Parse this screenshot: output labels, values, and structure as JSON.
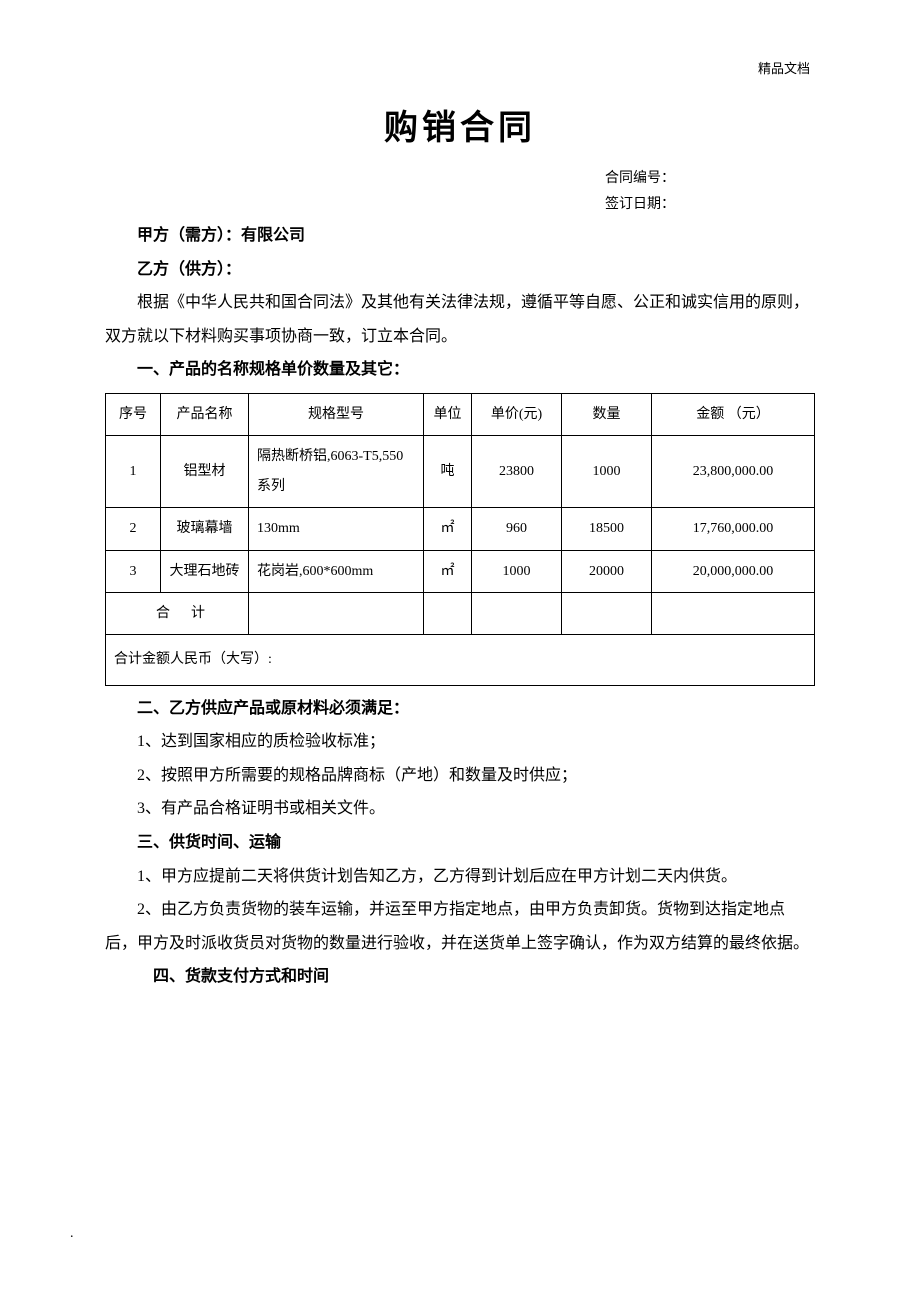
{
  "header_mark": "精品文档",
  "title": "购销合同",
  "meta": {
    "contract_no_label": "合同编号：",
    "sign_date_label": "签订日期："
  },
  "parties": {
    "party_a": "甲方（需方）：有限公司",
    "party_b": "乙方（供方）："
  },
  "intro": "根据《中华人民共和国合同法》及其他有关法律法规，遵循平等自愿、公正和诚实信用的原则，双方就以下材料购买事项协商一致，订立本合同。",
  "section1": {
    "heading": "一、产品的名称规格单价数量及其它：",
    "table": {
      "columns": [
        "序号",
        "产品名称",
        "规格型号",
        "单位",
        "单价(元)",
        "数量",
        "金额 （元）"
      ],
      "rows": [
        {
          "seq": "1",
          "name": "铝型材",
          "spec": "隔热断桥铝,6063-T5,550 系列",
          "unit": "吨",
          "price": "23800",
          "qty": "1000",
          "amount": "23,800,000.00"
        },
        {
          "seq": "2",
          "name": "玻璃幕墙",
          "spec": "130mm",
          "unit": "㎡",
          "price": "960",
          "qty": "18500",
          "amount": "17,760,000.00"
        },
        {
          "seq": "3",
          "name": "大理石地砖",
          "spec": "花岗岩,600*600mm",
          "unit": "㎡",
          "price": "1000",
          "qty": "20000",
          "amount": "20,000,000.00"
        }
      ],
      "total_label": "合计",
      "rmb_label": "合计金额人民币（大写）:"
    }
  },
  "section2": {
    "heading": "二、乙方供应产品或原材料必须满足：",
    "items": [
      "1、达到国家相应的质检验收标准；",
      "2、按照甲方所需要的规格品牌商标（产地）和数量及时供应；",
      "3、有产品合格证明书或相关文件。"
    ]
  },
  "section3": {
    "heading": "三、供货时间、运输",
    "items": [
      "1、甲方应提前二天将供货计划告知乙方，乙方得到计划后应在甲方计划二天内供货。",
      "2、由乙方负责货物的装车运输，并运至甲方指定地点，由甲方负责卸货。货物到达指定地点后，甲方及时派收货员对货物的数量进行验收，并在送货单上签字确认，作为双方结算的最终依据。"
    ]
  },
  "section4": {
    "heading": "四、货款支付方式和时间"
  },
  "footer_dot": "."
}
